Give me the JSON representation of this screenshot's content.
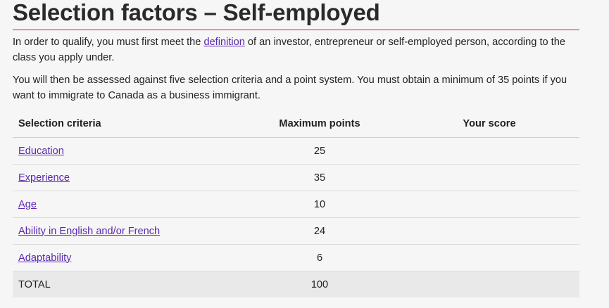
{
  "page": {
    "title": "Selection factors – Self-employed",
    "para1": {
      "before": "In order to qualify, you must first meet the ",
      "link": "definition",
      "after": " of an investor, entrepreneur or self-employed person, according to the class you apply under."
    },
    "para2": "You will then be assessed against five selection criteria and a point system. You must obtain a minimum of 35 points if you want to immigrate to Canada as a business immigrant."
  },
  "table": {
    "headers": {
      "criteria": "Selection criteria",
      "max": "Maximum points",
      "score": "Your score"
    },
    "rows": [
      {
        "label": "Education",
        "points": "25"
      },
      {
        "label": "Experience",
        "points": "35"
      },
      {
        "label": "Age",
        "points": "10"
      },
      {
        "label": "Ability in English and/or French",
        "points": "24"
      },
      {
        "label": "Adaptability",
        "points": "6"
      }
    ],
    "total": {
      "label": "TOTAL",
      "points": "100"
    }
  }
}
